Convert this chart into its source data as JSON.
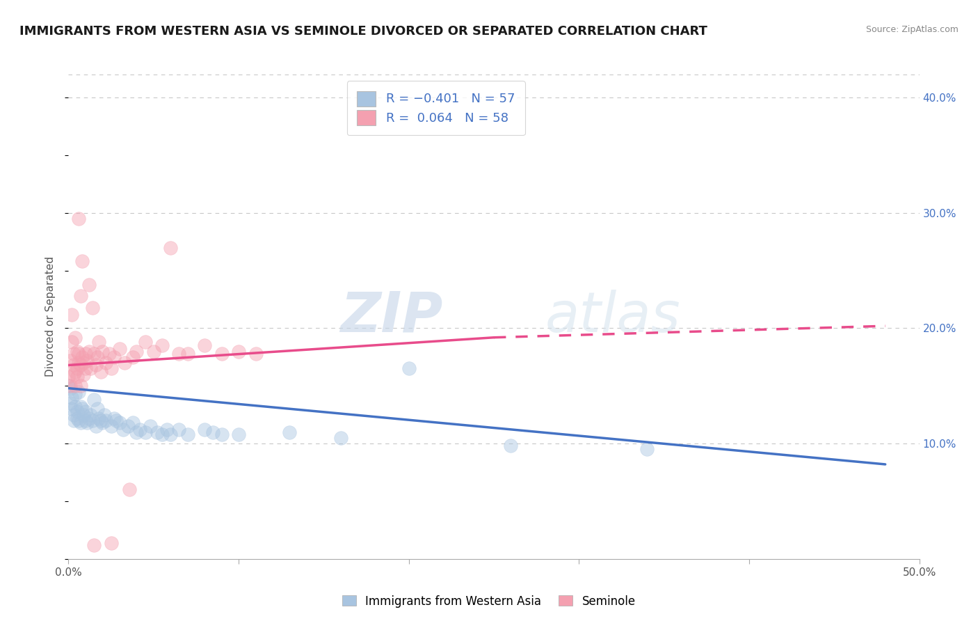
{
  "title": "IMMIGRANTS FROM WESTERN ASIA VS SEMINOLE DIVORCED OR SEPARATED CORRELATION CHART",
  "source": "Source: ZipAtlas.com",
  "ylabel": "Divorced or Separated",
  "legend_blue_label": "Immigrants from Western Asia",
  "legend_pink_label": "Seminole",
  "blue_R": -0.401,
  "blue_N": 57,
  "pink_R": 0.064,
  "pink_N": 58,
  "xlim": [
    0.0,
    0.5
  ],
  "ylim": [
    0.0,
    0.42
  ],
  "yticks_right": [
    0.1,
    0.2,
    0.3,
    0.4
  ],
  "background_color": "#ffffff",
  "grid_color": "#c8c8c8",
  "blue_dot_color": "#a8c4e0",
  "pink_dot_color": "#f4a0b0",
  "blue_line_color": "#4472c4",
  "pink_line_color": "#e84c8b",
  "watermark_color": "#ccd8e8",
  "title_fontsize": 13,
  "blue_scatter": [
    [
      0.0,
      0.15
    ],
    [
      0.001,
      0.148
    ],
    [
      0.001,
      0.135
    ],
    [
      0.002,
      0.13
    ],
    [
      0.002,
      0.14
    ],
    [
      0.003,
      0.125
    ],
    [
      0.003,
      0.12
    ],
    [
      0.004,
      0.143
    ],
    [
      0.004,
      0.132
    ],
    [
      0.005,
      0.128
    ],
    [
      0.005,
      0.122
    ],
    [
      0.006,
      0.12
    ],
    [
      0.006,
      0.145
    ],
    [
      0.007,
      0.118
    ],
    [
      0.007,
      0.132
    ],
    [
      0.008,
      0.13
    ],
    [
      0.009,
      0.125
    ],
    [
      0.01,
      0.12
    ],
    [
      0.01,
      0.128
    ],
    [
      0.011,
      0.118
    ],
    [
      0.012,
      0.122
    ],
    [
      0.013,
      0.125
    ],
    [
      0.014,
      0.12
    ],
    [
      0.015,
      0.138
    ],
    [
      0.016,
      0.115
    ],
    [
      0.017,
      0.13
    ],
    [
      0.018,
      0.122
    ],
    [
      0.019,
      0.12
    ],
    [
      0.02,
      0.118
    ],
    [
      0.021,
      0.125
    ],
    [
      0.022,
      0.12
    ],
    [
      0.025,
      0.115
    ],
    [
      0.027,
      0.122
    ],
    [
      0.028,
      0.12
    ],
    [
      0.03,
      0.118
    ],
    [
      0.032,
      0.112
    ],
    [
      0.035,
      0.115
    ],
    [
      0.038,
      0.118
    ],
    [
      0.04,
      0.11
    ],
    [
      0.042,
      0.112
    ],
    [
      0.045,
      0.11
    ],
    [
      0.048,
      0.115
    ],
    [
      0.052,
      0.11
    ],
    [
      0.055,
      0.108
    ],
    [
      0.058,
      0.112
    ],
    [
      0.06,
      0.108
    ],
    [
      0.065,
      0.112
    ],
    [
      0.07,
      0.108
    ],
    [
      0.08,
      0.112
    ],
    [
      0.085,
      0.11
    ],
    [
      0.09,
      0.108
    ],
    [
      0.1,
      0.108
    ],
    [
      0.13,
      0.11
    ],
    [
      0.16,
      0.105
    ],
    [
      0.2,
      0.165
    ],
    [
      0.26,
      0.098
    ],
    [
      0.34,
      0.095
    ]
  ],
  "pink_scatter": [
    [
      0.0,
      0.158
    ],
    [
      0.001,
      0.15
    ],
    [
      0.001,
      0.172
    ],
    [
      0.002,
      0.212
    ],
    [
      0.002,
      0.188
    ],
    [
      0.003,
      0.168
    ],
    [
      0.003,
      0.16
    ],
    [
      0.003,
      0.178
    ],
    [
      0.004,
      0.192
    ],
    [
      0.004,
      0.162
    ],
    [
      0.004,
      0.15
    ],
    [
      0.005,
      0.18
    ],
    [
      0.005,
      0.165
    ],
    [
      0.005,
      0.158
    ],
    [
      0.006,
      0.17
    ],
    [
      0.006,
      0.178
    ],
    [
      0.006,
      0.295
    ],
    [
      0.007,
      0.228
    ],
    [
      0.007,
      0.168
    ],
    [
      0.007,
      0.15
    ],
    [
      0.008,
      0.258
    ],
    [
      0.008,
      0.175
    ],
    [
      0.009,
      0.17
    ],
    [
      0.009,
      0.16
    ],
    [
      0.01,
      0.178
    ],
    [
      0.01,
      0.165
    ],
    [
      0.011,
      0.172
    ],
    [
      0.012,
      0.238
    ],
    [
      0.012,
      0.18
    ],
    [
      0.013,
      0.165
    ],
    [
      0.014,
      0.218
    ],
    [
      0.015,
      0.178
    ],
    [
      0.016,
      0.168
    ],
    [
      0.017,
      0.175
    ],
    [
      0.018,
      0.188
    ],
    [
      0.019,
      0.162
    ],
    [
      0.02,
      0.18
    ],
    [
      0.022,
      0.17
    ],
    [
      0.024,
      0.178
    ],
    [
      0.025,
      0.165
    ],
    [
      0.027,
      0.175
    ],
    [
      0.03,
      0.182
    ],
    [
      0.033,
      0.17
    ],
    [
      0.036,
      0.06
    ],
    [
      0.038,
      0.175
    ],
    [
      0.04,
      0.18
    ],
    [
      0.045,
      0.188
    ],
    [
      0.05,
      0.18
    ],
    [
      0.055,
      0.185
    ],
    [
      0.06,
      0.27
    ],
    [
      0.065,
      0.178
    ],
    [
      0.07,
      0.178
    ],
    [
      0.08,
      0.185
    ],
    [
      0.09,
      0.178
    ],
    [
      0.1,
      0.18
    ],
    [
      0.11,
      0.178
    ],
    [
      0.015,
      0.012
    ],
    [
      0.025,
      0.014
    ]
  ],
  "blue_trendline": [
    [
      0.0,
      0.148
    ],
    [
      0.48,
      0.082
    ]
  ],
  "pink_trendline_solid": [
    [
      0.0,
      0.168
    ],
    [
      0.25,
      0.192
    ]
  ],
  "pink_trendline_dash": [
    [
      0.25,
      0.192
    ],
    [
      0.48,
      0.202
    ]
  ]
}
